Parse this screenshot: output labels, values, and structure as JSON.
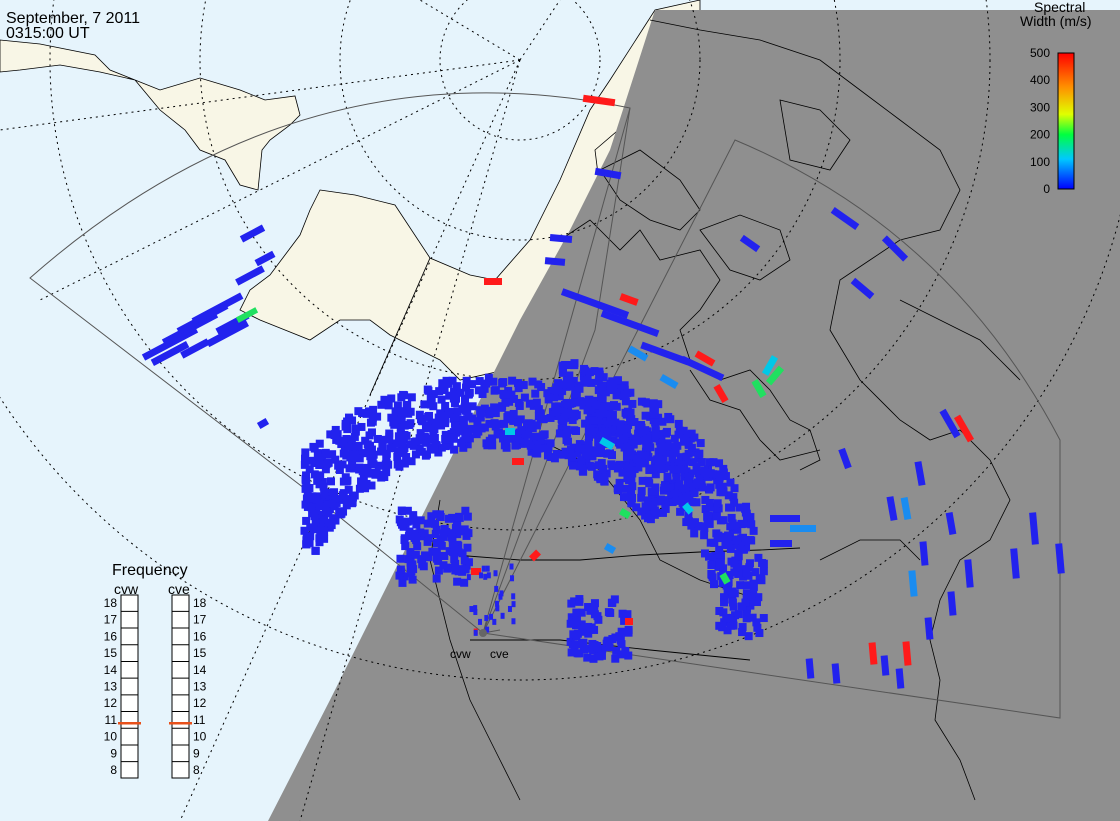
{
  "title": {
    "date": "September, 7 2011",
    "time": "0315:00 UT"
  },
  "legend": {
    "title_line1": "Spectral",
    "title_line2": "Width (m/s)",
    "ticks": [
      "500",
      "400",
      "300",
      "200",
      "100",
      "0"
    ],
    "colors": [
      "#ff0000",
      "#ffa000",
      "#ffff00",
      "#00ff00",
      "#00c0ff",
      "#0000ff"
    ]
  },
  "frequency": {
    "title": "Frequency",
    "radars": [
      "cvw",
      "cve"
    ],
    "ticks": [
      "18",
      "17",
      "16",
      "15",
      "14",
      "13",
      "12",
      "11",
      "10",
      "9",
      "8"
    ],
    "values_mhz": [
      10.8,
      10.8
    ]
  },
  "sites": {
    "west_label": "cvw",
    "east_label": "cve"
  },
  "colors": {
    "ocean": "#e6f4fc",
    "land": "#f8f6e6",
    "night": "#8f8f8f",
    "echo_low": "#2222ee",
    "echo_mid": "#1a8cf0",
    "echo_cyan": "#00c8e8",
    "echo_green": "#20e060",
    "echo_red": "#ff1a1a",
    "freq_marker": "#e8501a"
  }
}
